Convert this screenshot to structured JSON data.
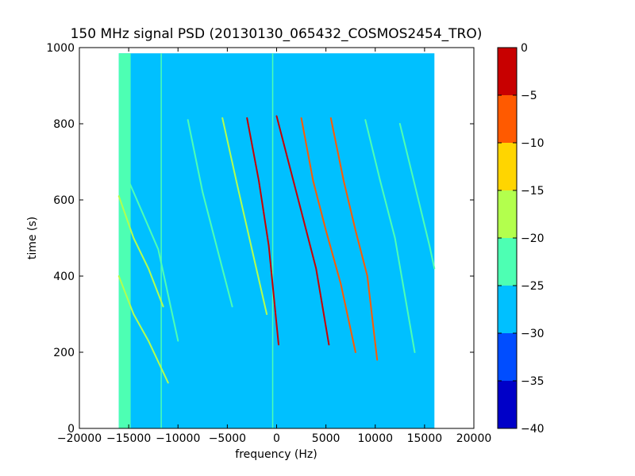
{
  "chart_data": {
    "type": "heatmap",
    "title": "150 MHz signal PSD (20130130_065432_COSMOS2454_TRO)",
    "xlabel": "frequency (Hz)",
    "ylabel": "time (s)",
    "xlim": [
      -20000,
      20000
    ],
    "ylim": [
      0,
      1000
    ],
    "x_ticks": [
      "−20000",
      "−15000",
      "−10000",
      "−5000",
      "0",
      "5000",
      "10000",
      "15000",
      "20000"
    ],
    "y_ticks": [
      "0",
      "200",
      "400",
      "600",
      "800",
      "1000"
    ],
    "data_extent": {
      "x": [
        -16000,
        16000
      ],
      "y": [
        0,
        985
      ]
    },
    "background_level_range": [
      -30,
      -25
    ],
    "colorbar": {
      "ticks": [
        "0",
        "−5",
        "−10",
        "−15",
        "−20",
        "−25",
        "−30",
        "−35",
        "−40"
      ],
      "levels": [
        -40,
        -35,
        -30,
        -25,
        -20,
        -15,
        -10,
        -5,
        0
      ],
      "colors": [
        "#0000c8",
        "#004dff",
        "#00c0ff",
        "#4dffb3",
        "#b3ff4d",
        "#ffd500",
        "#ff5a00",
        "#c80000"
      ]
    },
    "band_features": [
      {
        "name": "edge band",
        "x": [
          -16000,
          -14800
        ],
        "y": [
          0,
          985
        ],
        "color": "#4dffb3"
      },
      {
        "name": "line near -11700",
        "x": -11700,
        "y": [
          0,
          985
        ],
        "color": "#4dffb3"
      },
      {
        "name": "line near 0",
        "x": -400,
        "y": [
          0,
          985
        ],
        "color": "#4dffb3"
      }
    ],
    "tracks": [
      {
        "x": [
          -16000,
          -14500,
          -13000,
          -11500
        ],
        "y": [
          610,
          500,
          420,
          320
        ],
        "color": "#b3ff4d"
      },
      {
        "x": [
          -16000,
          -14500,
          -13000,
          -11000
        ],
        "y": [
          400,
          300,
          230,
          120
        ],
        "color": "#b3ff4d"
      },
      {
        "x": [
          -15000,
          -13500,
          -12000,
          -10000
        ],
        "y": [
          650,
          560,
          470,
          230
        ],
        "color": "#4dffb3"
      },
      {
        "x": [
          -9000,
          -7500,
          -6000,
          -4500
        ],
        "y": [
          810,
          620,
          470,
          320
        ],
        "color": "#4dffb3"
      },
      {
        "x": [
          -5500,
          -4000,
          -2500,
          -1000
        ],
        "y": [
          815,
          640,
          470,
          300
        ],
        "color": "#b3ff4d"
      },
      {
        "x": [
          -3000,
          -1800,
          -800,
          200
        ],
        "y": [
          815,
          650,
          480,
          220
        ],
        "color": "#c80000"
      },
      {
        "x": [
          0,
          1200,
          2500,
          4000,
          5300
        ],
        "y": [
          820,
          700,
          570,
          420,
          220
        ],
        "color": "#c80000"
      },
      {
        "x": [
          2500,
          3700,
          5000,
          6500,
          8000
        ],
        "y": [
          815,
          650,
          520,
          380,
          200
        ],
        "color": "#ff5a00"
      },
      {
        "x": [
          5500,
          6800,
          8000,
          9200,
          10200
        ],
        "y": [
          815,
          650,
          520,
          400,
          180
        ],
        "color": "#ff5a00"
      },
      {
        "x": [
          9000,
          10500,
          12000,
          14000
        ],
        "y": [
          810,
          650,
          500,
          200
        ],
        "color": "#4dffb3"
      },
      {
        "x": [
          12500,
          14000,
          15500,
          16000
        ],
        "y": [
          800,
          640,
          480,
          420
        ],
        "color": "#4dffb3"
      }
    ]
  }
}
